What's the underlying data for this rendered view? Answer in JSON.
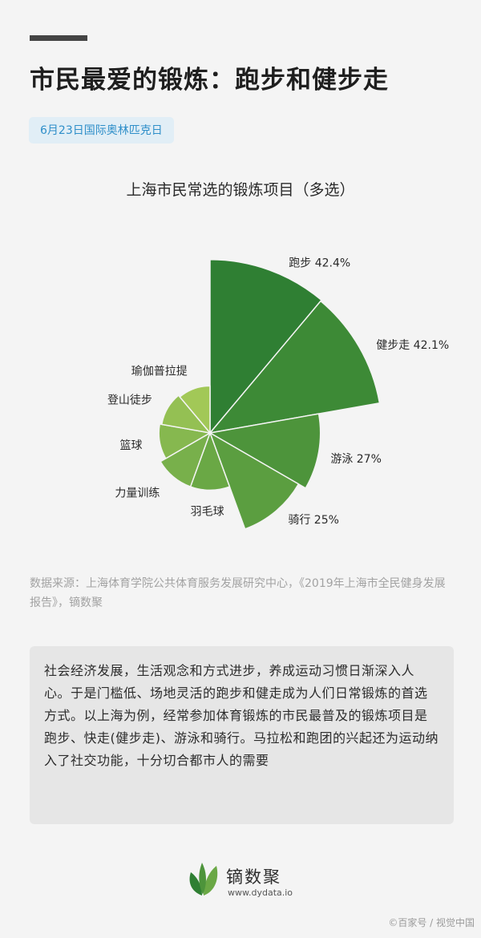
{
  "header": {
    "title": "市民最爱的锻炼：跑步和健步走",
    "date_tag": "6月23日国际奥林匹克日"
  },
  "chart_data": {
    "type": "polar-area",
    "title": "上海市民常选的锻炼项目（多选）",
    "unit": "%",
    "categories": [
      "跑步",
      "健步走",
      "游泳",
      "骑行",
      "羽毛球",
      "力量训练",
      "篮球",
      "登山徒步",
      "瑜伽普拉提"
    ],
    "values": [
      42.4,
      42.1,
      27,
      25,
      14,
      14,
      12.5,
      12,
      11.5
    ],
    "value_labels": [
      "42.4%",
      "42.1%",
      "27%",
      "25%",
      "",
      "",
      "",
      "",
      ""
    ],
    "colors": [
      "#2f7f33",
      "#3d8a36",
      "#4d943b",
      "#5b9e40",
      "#6aa845",
      "#78b04b",
      "#86b84f",
      "#94c053",
      "#a2c857"
    ]
  },
  "source": "数据来源：上海体育学院公共体育服务发展研究中心，《2019年上海市全民健身发展报告》，镝数聚",
  "summary": "社会经济发展，生活观念和方式进步，养成运动习惯日渐深入人心。于是门槛低、场地灵活的跑步和健走成为人们日常锻炼的首选方式。以上海为例，经常参加体育锻炼的市民最普及的锻炼项目是跑步、快走(健步走)、游泳和骑行。马拉松和跑团的兴起还为运动纳入了社交功能，十分切合都市人的需要",
  "footer": {
    "logo_icon": "leaf-logo-icon",
    "brand_name": "镝数聚",
    "brand_url": "www.dydata.io",
    "watermark": "©百家号 / 视觉中国"
  }
}
